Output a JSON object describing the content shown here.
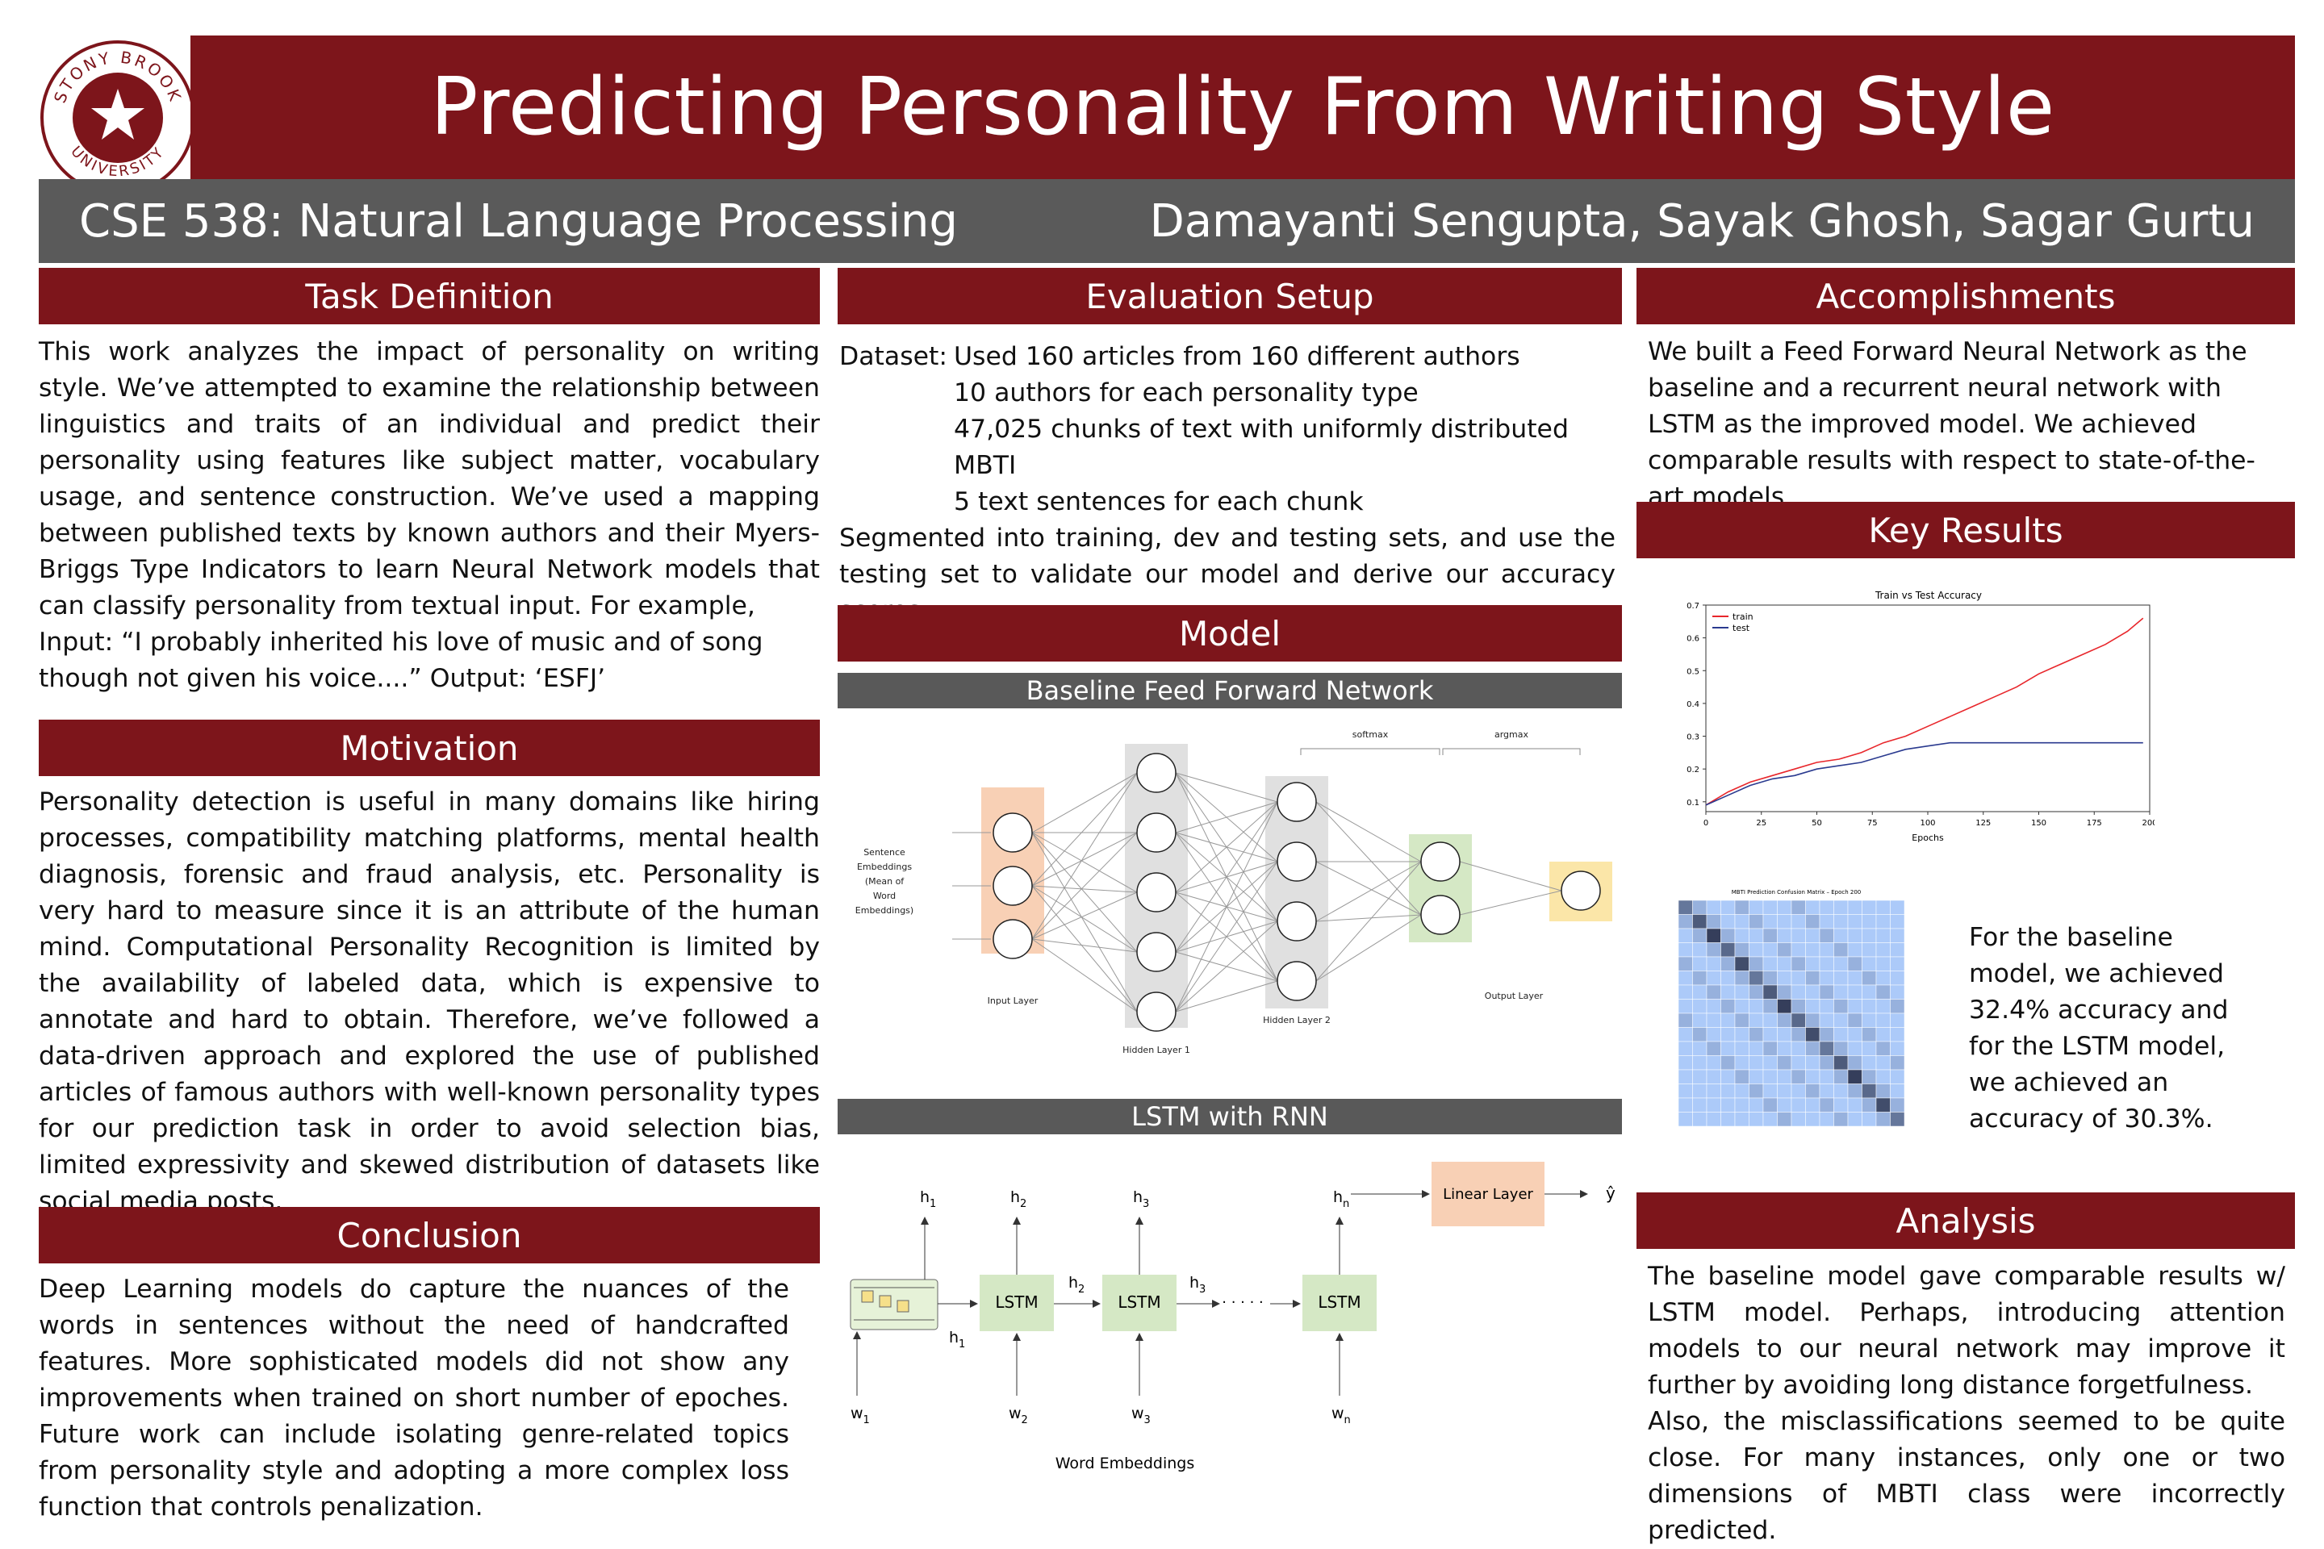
{
  "header": {
    "title": "Predicting Personality From Writing Style",
    "course": "CSE 538: Natural Language Processing",
    "authors": "Damayanti Sengupta, Sayak Ghosh, Sagar Gurtu",
    "logo_text_top": "STONY BROOK",
    "logo_text_bottom": "UNIVERSITY",
    "colors": {
      "maroon": "#7d151b",
      "gray": "#5a5a5a"
    }
  },
  "task": {
    "heading": "Task Definition",
    "paragraph": "This work analyzes the impact of personality on writing style. We’ve attempted to examine the relationship between linguistics and traits of an individual and predict their personality using features like subject matter, vocabulary usage, and sentence construction.  We’ve used a mapping between published texts by known authors and their Myers-Briggs Type Indicators to learn Neural Network models that can classify personality from textual input. For example,",
    "example": "Input: “I probably inherited his love of music and of song though not given his voice....” Output: ‘ESFJ’"
  },
  "motivation": {
    "heading": "Motivation",
    "paragraph": "Personality detection is useful in many domains like hiring processes, compatibility matching platforms, mental health diagnosis, forensic and fraud analysis, etc. Personality is very hard to measure since it is an attribute of the human mind. Computational Personality Recognition is limited by the availability of labeled data, which is expensive to annotate and hard to obtain. Therefore, we’ve followed a data-driven approach and explored the use of published articles of famous authors with well-known personality types for our prediction task in order to avoid selection bias, limited expressivity and skewed distribution of datasets like social media posts."
  },
  "conclusion": {
    "heading": "Conclusion",
    "paragraph": "Deep Learning models do capture the nuances of the words in sentences without the need of handcrafted features. More sophisticated models did not show any improvements when trained on short number of epoches. Future work can include isolating genre-related topics from personality style and adopting a more complex loss function that controls penalization."
  },
  "evaluation": {
    "heading": "Evaluation Setup",
    "dataset_label": "Dataset:",
    "dataset_lines": [
      "Used 160 articles from 160 different authors",
      "10 authors for each personality type",
      "47,025 chunks of text with uniformly distributed MBTI",
      "5 text sentences for each chunk"
    ],
    "paragraph": "Segmented into training, dev and testing sets, and use the testing set to validate our model and derive our accuracy scores."
  },
  "model": {
    "heading": "Model",
    "baseline_title": "Baseline Feed Forward Network",
    "ffn": {
      "input_caption": [
        "Sentence",
        "Embeddings",
        "(Mean of",
        "Word",
        "Embeddings)"
      ],
      "input_layer": "Input Layer",
      "hidden1": "Hidden Layer 1",
      "hidden2": "Hidden Layer 2",
      "output_layer": "Output Layer",
      "softmax": "softmax",
      "argmax": "argmax"
    },
    "lstm_title": "LSTM with RNN",
    "rnn": {
      "lstm": "LSTM",
      "linear": "Linear Layer",
      "dots": "· · · · ·",
      "word_embeddings": "Word Embeddings",
      "h": "h",
      "w": "w",
      "subs_top": [
        "1",
        "2",
        "3",
        "n"
      ],
      "subs_mid": [
        "1",
        "2",
        "3"
      ],
      "subs_bottom": [
        "1",
        "2",
        "3",
        "n"
      ],
      "yhat": "ŷ"
    }
  },
  "accomplishments": {
    "heading": "Accomplishments",
    "paragraph": "We built a Feed Forward Neural Network as the baseline and a recurrent neural network with LSTM as the improved model. We achieved comparable results with respect to state-of-the-art models."
  },
  "results": {
    "heading": "Key Results",
    "text": "For the baseline model, we achieved 32.4% accuracy and for the LSTM model, we achieved an accuracy of 30.3%.",
    "cm_title": "MBTI Prediction Confusion Matrix – Epoch 200"
  },
  "analysis": {
    "heading": "Analysis",
    "paragraph1": "The baseline model gave comparable results w/ LSTM model. Perhaps, introducing attention models to our neural network may improve it further by avoiding long distance forgetfulness.",
    "paragraph2": "Also, the misclassifications seemed to be quite close. For many instances, only one or two dimensions of MBTI class were incorrectly predicted."
  },
  "chart_data": {
    "type": "line",
    "title": "Train vs Test Accuracy",
    "xlabel": "Epochs",
    "ylabel": "",
    "xlim": [
      0,
      200
    ],
    "ylim": [
      0.07,
      0.7
    ],
    "xticks": [
      0,
      25,
      50,
      75,
      100,
      125,
      150,
      175,
      200
    ],
    "yticks": [
      0.1,
      0.2,
      0.3,
      0.4,
      0.5,
      0.6,
      0.7
    ],
    "legend": "top-left",
    "grid": false,
    "series": [
      {
        "name": "train",
        "color": "#e8262b",
        "x": [
          0,
          10,
          20,
          30,
          40,
          50,
          60,
          70,
          80,
          90,
          100,
          110,
          120,
          130,
          140,
          150,
          160,
          170,
          180,
          190,
          197
        ],
        "y": [
          0.09,
          0.13,
          0.16,
          0.18,
          0.2,
          0.22,
          0.23,
          0.25,
          0.28,
          0.3,
          0.33,
          0.36,
          0.39,
          0.42,
          0.45,
          0.49,
          0.52,
          0.55,
          0.58,
          0.62,
          0.66
        ]
      },
      {
        "name": "test",
        "color": "#2a3a8f",
        "x": [
          0,
          10,
          20,
          30,
          40,
          50,
          60,
          70,
          80,
          90,
          100,
          110,
          120,
          130,
          140,
          150,
          160,
          170,
          180,
          190,
          197
        ],
        "y": [
          0.09,
          0.12,
          0.15,
          0.17,
          0.18,
          0.2,
          0.21,
          0.22,
          0.24,
          0.26,
          0.27,
          0.28,
          0.28,
          0.28,
          0.28,
          0.28,
          0.28,
          0.28,
          0.28,
          0.28,
          0.28
        ]
      }
    ]
  }
}
